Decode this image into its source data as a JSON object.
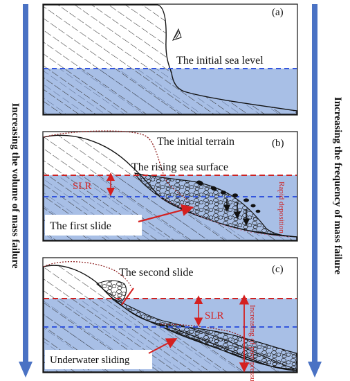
{
  "left_arrow": {
    "label": "Increasing the volume of mass failure",
    "color": "#4a72c4"
  },
  "right_arrow": {
    "label": "Increasing the frequency of mass failure",
    "color": "#4a72c4"
  },
  "panel_a": {
    "tag": "(a)",
    "initial_sea_level": "The initial sea level"
  },
  "panel_b": {
    "tag": "(b)",
    "initial_terrain": "The initial terrain",
    "rising_sea_surface": "The rising sea surface",
    "slr": "SLR",
    "first_slide": "The first slide",
    "rapid_deposition": "Rapid deposition"
  },
  "panel_c": {
    "tag": "(c)",
    "second_slide": "The second slide",
    "slr": "SLR",
    "underwater_sliding": "Underwater sliding",
    "pore_pressure": "Increasing of pore pressure"
  },
  "colors": {
    "sea": "#a8bfe6",
    "dashed_blue": "#3355dd",
    "dashed_red": "#cc2222",
    "red_line": "#d42020",
    "dark_red": "#8b1a1a"
  }
}
